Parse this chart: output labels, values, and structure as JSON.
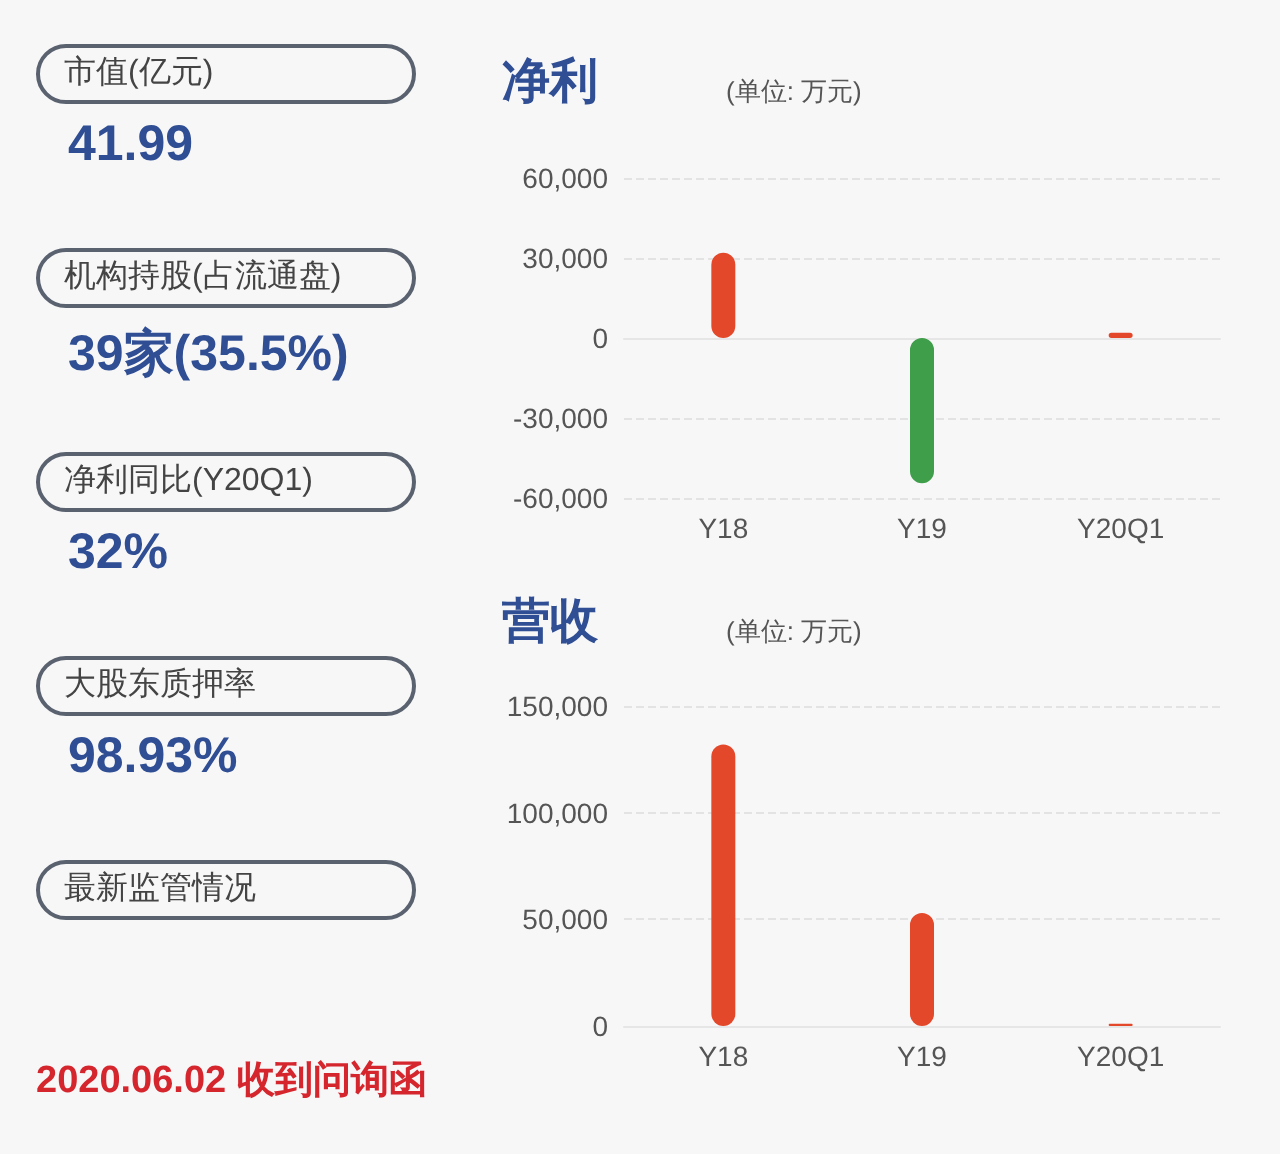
{
  "chart_data": [
    {
      "type": "other",
      "annotations": [
        "市值(亿元)",
        "41.99",
        "机构持股(占流通盘)",
        "39家(35.5%)",
        "净利同比(Y20Q1)",
        "32%",
        "大股东质押率",
        "98.93%",
        "最新监管情况",
        "2020.06.02 收到问询函"
      ]
    },
    {
      "type": "bar",
      "title": "净利",
      "subtitle": "(单位: 万元)",
      "categories": [
        "Y18",
        "Y19",
        "Y20Q1"
      ],
      "values": [
        32000,
        -54500,
        2000
      ],
      "colors": [
        "#e4482b",
        "#3e9e4a",
        "#e4482b"
      ],
      "ylim": [
        -60000,
        60000
      ],
      "yticks": [
        {
          "value": -60000,
          "label": "-60,000"
        },
        {
          "value": -30000,
          "label": "-30,000"
        },
        0,
        {
          "value": 30000,
          "label": "30,000"
        },
        {
          "value": 60000,
          "label": "60,000"
        }
      ],
      "grid": "y"
    },
    {
      "type": "bar",
      "title": "营收",
      "subtitle": "(单位: 万元)",
      "categories": [
        "Y18",
        "Y19",
        "Y20Q1"
      ],
      "values": [
        132000,
        53000,
        1000
      ],
      "colors": [
        "#e4482b",
        "#e4482b",
        "#e4482b"
      ],
      "ylim": [
        0,
        150000
      ],
      "yticks": [
        0,
        {
          "value": 50000,
          "label": "50,000"
        },
        {
          "value": 100000,
          "label": "100,000"
        },
        {
          "value": 150000,
          "label": "150,000"
        }
      ],
      "grid": "y"
    }
  ]
}
